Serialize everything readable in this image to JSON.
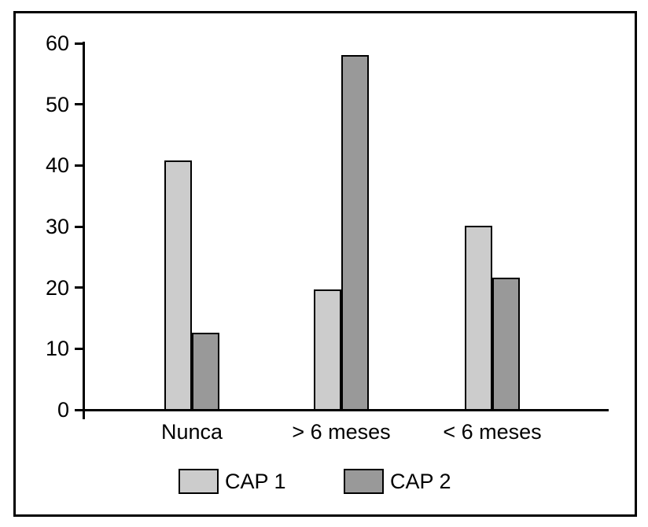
{
  "chart_data": {
    "type": "bar",
    "title": "",
    "xlabel": "",
    "ylabel": "",
    "categories": [
      "Nunca",
      "> 6 meses",
      "< 6 meses"
    ],
    "series": [
      {
        "name": "CAP 1",
        "color": "#cccccc",
        "values": [
          41,
          19.8,
          30.3
        ]
      },
      {
        "name": "CAP 2",
        "color": "#999999",
        "values": [
          12.7,
          58.2,
          21.7
        ]
      }
    ],
    "ylim": [
      0,
      60
    ],
    "yticks": [
      0,
      10,
      20,
      30,
      40,
      50,
      60
    ],
    "grid": false,
    "legend_position": "bottom-center",
    "colors": {
      "axis": "#000000",
      "bar_border": "#000000",
      "frame_border": "#000000",
      "background": "#ffffff",
      "text": "#000000"
    }
  }
}
